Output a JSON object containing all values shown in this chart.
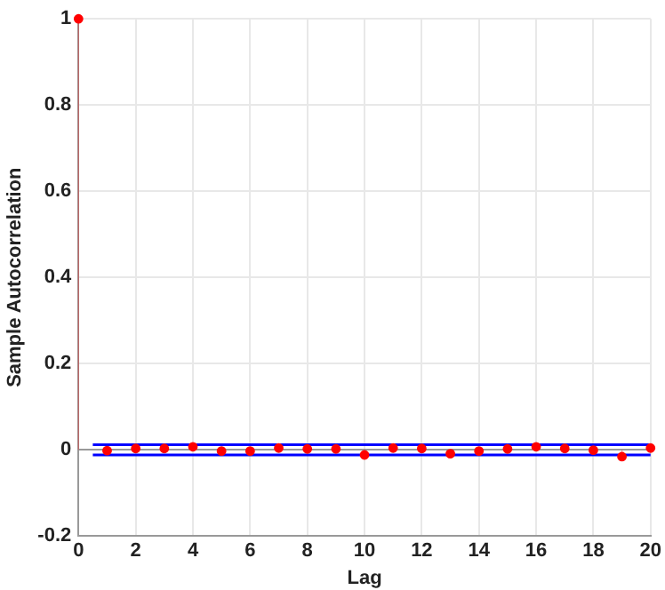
{
  "chart_data": {
    "type": "lollipop",
    "xlabel": "Lag",
    "ylabel": "Sample Autocorrelation",
    "x": [
      0,
      1,
      2,
      3,
      4,
      5,
      6,
      7,
      8,
      9,
      10,
      11,
      12,
      13,
      14,
      15,
      16,
      17,
      18,
      19,
      20
    ],
    "series": [
      {
        "color": "#ff0000",
        "values": [
          1,
          -0.002,
          0.003,
          0.003,
          0.007,
          -0.003,
          -0.003,
          0.004,
          0.002,
          0.002,
          -0.012,
          0.004,
          0.003,
          -0.009,
          -0.003,
          0.002,
          0.007,
          0.003,
          -0.001,
          -0.016,
          0.004
        ]
      }
    ],
    "ref_lines": [
      {
        "axis": "y",
        "value": 0.012,
        "color": "#0000ff"
      },
      {
        "axis": "y",
        "value": -0.012,
        "color": "#0000ff"
      }
    ],
    "xlim": [
      0,
      20
    ],
    "xticks": [
      0,
      2,
      4,
      6,
      8,
      10,
      12,
      14,
      16,
      18,
      20
    ],
    "ylim": [
      -0.2,
      1
    ],
    "yticks": [
      -0.2,
      0,
      0.2,
      0.4,
      0.6,
      0.8,
      1
    ],
    "grid": true,
    "marker": "circle",
    "legend": false
  }
}
